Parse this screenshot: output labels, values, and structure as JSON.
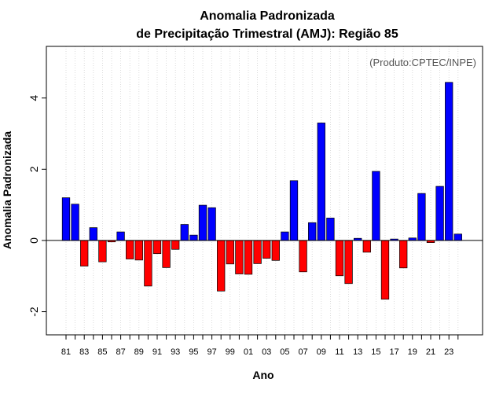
{
  "chart_data": {
    "type": "bar",
    "title": "Anomalia Padronizada",
    "subtitle": "de Precipitação Trimestral (AMJ): Região 85",
    "annotation": "(Produto:CPTEC/INPE)",
    "xlabel": "Ano",
    "ylabel": "Anomalia Padronizada",
    "ylim": [
      -2.65,
      5.45
    ],
    "yticks": [
      -2,
      0,
      2,
      4
    ],
    "grid": "vertical-dotted",
    "categories": [
      "81",
      "82",
      "83",
      "84",
      "85",
      "86",
      "87",
      "88",
      "89",
      "90",
      "91",
      "92",
      "93",
      "94",
      "95",
      "96",
      "97",
      "98",
      "99",
      "00",
      "01",
      "02",
      "03",
      "04",
      "05",
      "06",
      "07",
      "08",
      "09",
      "10",
      "11",
      "12",
      "13",
      "14",
      "15",
      "16",
      "17",
      "18",
      "19",
      "20",
      "21",
      "22",
      "23",
      "24"
    ],
    "tick_labels": [
      "81",
      "83",
      "85",
      "87",
      "89",
      "91",
      "93",
      "95",
      "97",
      "99",
      "01",
      "03",
      "05",
      "07",
      "09",
      "11",
      "13",
      "15",
      "17",
      "19",
      "21",
      "23"
    ],
    "values": [
      1.2,
      1.02,
      -0.72,
      0.36,
      -0.6,
      -0.04,
      0.24,
      -0.52,
      -0.55,
      -1.28,
      -0.37,
      -0.76,
      -0.25,
      0.45,
      0.15,
      0.99,
      0.92,
      -1.42,
      -0.66,
      -0.94,
      -0.95,
      -0.65,
      -0.5,
      -0.56,
      0.24,
      1.68,
      -0.88,
      0.5,
      3.3,
      0.63,
      -0.99,
      -1.21,
      0.06,
      -0.33,
      1.94,
      -1.65,
      0.04,
      -0.77,
      0.07,
      1.32,
      -0.06,
      1.52,
      4.44,
      0.18
    ],
    "positive_color": "#0000ff",
    "negative_color": "#ff0000"
  }
}
